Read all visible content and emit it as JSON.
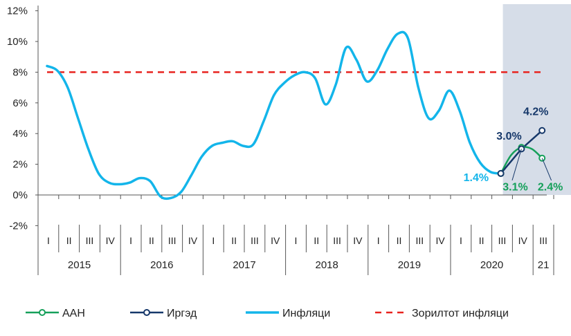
{
  "chart_data": {
    "type": "line",
    "y_ticks": [
      "12%",
      "10%",
      "8%",
      "6%",
      "4%",
      "2%",
      "0%",
      "-2%"
    ],
    "y_tick_values": [
      12,
      10,
      8,
      6,
      4,
      2,
      0,
      -2
    ],
    "ylim": [
      -2,
      12
    ],
    "grid": false,
    "quarters": [
      "I",
      "II",
      "III",
      "IV",
      "I",
      "II",
      "III",
      "IV",
      "I",
      "II",
      "III",
      "IV",
      "I",
      "II",
      "III",
      "IV",
      "I",
      "II",
      "III",
      "IV",
      "I",
      "II",
      "III",
      "IV",
      "III"
    ],
    "years": [
      {
        "label": "2015",
        "start": 0,
        "end": 4
      },
      {
        "label": "2016",
        "start": 4,
        "end": 8
      },
      {
        "label": "2017",
        "start": 8,
        "end": 12
      },
      {
        "label": "2018",
        "start": 12,
        "end": 16
      },
      {
        "label": "2019",
        "start": 16,
        "end": 20
      },
      {
        "label": "2020",
        "start": 20,
        "end": 24
      },
      {
        "label": "21",
        "start": 24,
        "end": 25
      }
    ],
    "forecast_shade": {
      "from_x": 22.1,
      "to_x": 25.0,
      "color": "#d6dde8"
    },
    "series": [
      {
        "name": "Инфляци",
        "color": "#13b5ea",
        "marker": false,
        "points": [
          [
            0.0,
            8.4
          ],
          [
            0.5,
            8.1
          ],
          [
            1.0,
            7.0
          ],
          [
            1.5,
            5.0
          ],
          [
            2.0,
            3.0
          ],
          [
            2.5,
            1.4
          ],
          [
            3.0,
            0.8
          ],
          [
            3.5,
            0.7
          ],
          [
            4.0,
            0.8
          ],
          [
            4.5,
            1.1
          ],
          [
            5.0,
            0.9
          ],
          [
            5.5,
            -0.1
          ],
          [
            6.0,
            -0.2
          ],
          [
            6.5,
            0.2
          ],
          [
            7.0,
            1.3
          ],
          [
            7.5,
            2.5
          ],
          [
            8.0,
            3.2
          ],
          [
            8.5,
            3.4
          ],
          [
            9.0,
            3.5
          ],
          [
            9.5,
            3.2
          ],
          [
            10.0,
            3.3
          ],
          [
            10.5,
            4.8
          ],
          [
            11.0,
            6.5
          ],
          [
            11.5,
            7.3
          ],
          [
            12.0,
            7.8
          ],
          [
            12.5,
            8.0
          ],
          [
            13.0,
            7.6
          ],
          [
            13.5,
            5.9
          ],
          [
            14.0,
            7.2
          ],
          [
            14.5,
            9.6
          ],
          [
            15.0,
            8.8
          ],
          [
            15.5,
            7.4
          ],
          [
            16.0,
            8.1
          ],
          [
            16.5,
            9.5
          ],
          [
            17.0,
            10.5
          ],
          [
            17.5,
            10.2
          ],
          [
            18.0,
            7.0
          ],
          [
            18.5,
            5.0
          ],
          [
            19.0,
            5.5
          ],
          [
            19.5,
            6.8
          ],
          [
            20.0,
            5.5
          ],
          [
            20.5,
            3.4
          ],
          [
            21.0,
            2.1
          ],
          [
            21.5,
            1.5
          ],
          [
            22.0,
            1.4
          ]
        ]
      },
      {
        "name": "ААН",
        "color": "#16a05a",
        "marker": true,
        "marker_points": [
          [
            22.0,
            1.4
          ],
          [
            23.0,
            3.1
          ],
          [
            24.0,
            2.4
          ]
        ],
        "points": [
          [
            22.0,
            1.4
          ],
          [
            22.5,
            2.6
          ],
          [
            23.0,
            3.1
          ],
          [
            23.5,
            3.0
          ],
          [
            24.0,
            2.4
          ]
        ]
      },
      {
        "name": "Иргэд",
        "color": "#16386a",
        "marker": true,
        "marker_points": [
          [
            22.0,
            1.4
          ],
          [
            23.0,
            3.0
          ],
          [
            24.0,
            4.2
          ]
        ],
        "points": [
          [
            22.0,
            1.4
          ],
          [
            23.0,
            3.0
          ],
          [
            24.0,
            4.2
          ]
        ]
      },
      {
        "name": "Зорилтот инфляци",
        "color": "#e8231e",
        "dashed": true,
        "marker": false,
        "points": [
          [
            0.0,
            8.0
          ],
          [
            24.0,
            8.0
          ]
        ]
      }
    ],
    "annotations": [
      {
        "text": "4.2%",
        "x": 23.7,
        "y": 5.2,
        "color": "#16386a",
        "anchor": "middle"
      },
      {
        "text": "3.0%",
        "x": 22.4,
        "y": 3.6,
        "color": "#16386a",
        "anchor": "middle"
      },
      {
        "text": "1.4%",
        "x": 20.8,
        "y": 0.9,
        "color": "#13b5ea",
        "anchor": "middle"
      },
      {
        "text": "3.1%",
        "x": 22.7,
        "y": 0.3,
        "color": "#16a05a",
        "anchor": "middle"
      },
      {
        "text": "2.4%",
        "x": 24.4,
        "y": 0.3,
        "color": "#16a05a",
        "anchor": "middle"
      }
    ],
    "legend": {
      "position": "bottom",
      "items": [
        {
          "name": "ААН",
          "color": "#16a05a",
          "style": "marker"
        },
        {
          "name": "Иргэд",
          "color": "#16386a",
          "style": "marker"
        },
        {
          "name": "Инфляци",
          "color": "#13b5ea",
          "style": "line"
        },
        {
          "name": "Зорилтот инфляци",
          "color": "#e8231e",
          "style": "dashed"
        }
      ]
    }
  }
}
